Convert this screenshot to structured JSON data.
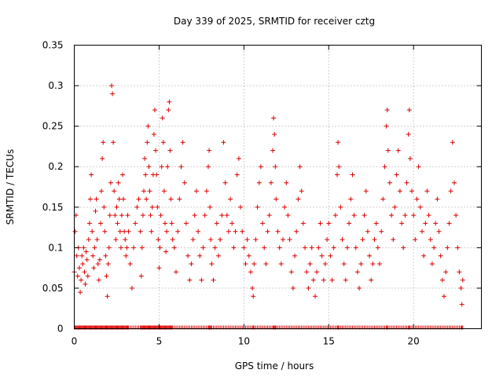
{
  "chart_data": {
    "type": "scatter",
    "title": "Day 339 of 2025, SRMTID for receiver cztg",
    "xlabel": "GPS time / hours",
    "ylabel": "SRMTID / TECUs",
    "xlim": [
      0,
      24
    ],
    "ylim": [
      0,
      0.35
    ],
    "x_ticks": [
      0,
      5,
      10,
      15,
      20
    ],
    "x_tick_labels": [
      "0",
      "5",
      "10",
      "15",
      "20"
    ],
    "y_ticks": [
      0,
      0.05,
      0.1,
      0.15,
      0.2,
      0.25,
      0.3,
      0.35
    ],
    "y_tick_labels": [
      "0",
      "0.05",
      "0.1",
      "0.15",
      "0.2",
      "0.25",
      "0.3",
      "0.35"
    ],
    "grid": true,
    "marker": "+",
    "color": "#dd0000",
    "series": [
      {
        "name": "SRMTID",
        "points": [
          [
            0.0,
            0.07
          ],
          [
            0.05,
            0.12
          ],
          [
            0.1,
            0.14
          ],
          [
            0.15,
            0.09
          ],
          [
            0.2,
            0.065
          ],
          [
            0.25,
            0.1
          ],
          [
            0.3,
            0.075
          ],
          [
            0.35,
            0.045
          ],
          [
            0.4,
            0.06
          ],
          [
            0.45,
            0.09
          ],
          [
            0.5,
            0.08
          ],
          [
            0.55,
            0.1
          ],
          [
            0.6,
            0.07
          ],
          [
            0.65,
            0.055
          ],
          [
            0.7,
            0.095
          ],
          [
            0.75,
            0.085
          ],
          [
            0.8,
            0.065
          ],
          [
            0.85,
            0.11
          ],
          [
            0.9,
            0.13
          ],
          [
            0.95,
            0.16
          ],
          [
            1.0,
            0.19
          ],
          [
            1.05,
            0.12
          ],
          [
            1.1,
            0.09
          ],
          [
            1.15,
            0.075
          ],
          [
            1.2,
            0.1
          ],
          [
            1.25,
            0.145
          ],
          [
            1.3,
            0.16
          ],
          [
            1.35,
            0.11
          ],
          [
            1.4,
            0.08
          ],
          [
            1.45,
            0.06
          ],
          [
            1.5,
            0.085
          ],
          [
            1.55,
            0.13
          ],
          [
            1.6,
            0.17
          ],
          [
            1.65,
            0.21
          ],
          [
            1.7,
            0.23
          ],
          [
            1.75,
            0.15
          ],
          [
            1.8,
            0.12
          ],
          [
            1.85,
            0.09
          ],
          [
            1.9,
            0.065
          ],
          [
            1.95,
            0.04
          ],
          [
            2.0,
            0.08
          ],
          [
            2.05,
            0.1
          ],
          [
            2.1,
            0.14
          ],
          [
            2.15,
            0.18
          ],
          [
            2.2,
            0.3
          ],
          [
            2.25,
            0.29
          ],
          [
            2.3,
            0.23
          ],
          [
            2.35,
            0.17
          ],
          [
            2.4,
            0.14
          ],
          [
            2.45,
            0.11
          ],
          [
            2.5,
            0.15
          ],
          [
            2.55,
            0.13
          ],
          [
            2.6,
            0.18
          ],
          [
            2.65,
            0.16
          ],
          [
            2.7,
            0.12
          ],
          [
            2.75,
            0.1
          ],
          [
            2.8,
            0.14
          ],
          [
            2.85,
            0.19
          ],
          [
            2.9,
            0.16
          ],
          [
            2.95,
            0.12
          ],
          [
            3.0,
            0.11
          ],
          [
            3.05,
            0.09
          ],
          [
            3.1,
            0.1
          ],
          [
            3.15,
            0.14
          ],
          [
            3.2,
            0.12
          ],
          [
            3.3,
            0.08
          ],
          [
            3.4,
            0.05
          ],
          [
            3.5,
            0.1
          ],
          [
            3.6,
            0.13
          ],
          [
            3.7,
            0.15
          ],
          [
            3.8,
            0.16
          ],
          [
            3.9,
            0.12
          ],
          [
            3.95,
            0.065
          ],
          [
            4.0,
            0.1
          ],
          [
            4.05,
            0.14
          ],
          [
            4.1,
            0.17
          ],
          [
            4.15,
            0.21
          ],
          [
            4.2,
            0.19
          ],
          [
            4.25,
            0.16
          ],
          [
            4.3,
            0.23
          ],
          [
            4.35,
            0.25
          ],
          [
            4.4,
            0.2
          ],
          [
            4.45,
            0.17
          ],
          [
            4.5,
            0.14
          ],
          [
            4.55,
            0.12
          ],
          [
            4.6,
            0.15
          ],
          [
            4.65,
            0.19
          ],
          [
            4.7,
            0.24
          ],
          [
            4.75,
            0.27
          ],
          [
            4.8,
            0.22
          ],
          [
            4.85,
            0.19
          ],
          [
            4.9,
            0.15
          ],
          [
            4.95,
            0.11
          ],
          [
            5.0,
            0.075
          ],
          [
            5.05,
            0.1
          ],
          [
            5.1,
            0.14
          ],
          [
            5.15,
            0.2
          ],
          [
            5.2,
            0.26
          ],
          [
            5.25,
            0.23
          ],
          [
            5.3,
            0.17
          ],
          [
            5.35,
            0.13
          ],
          [
            5.4,
            0.095
          ],
          [
            5.45,
            0.12
          ],
          [
            5.5,
            0.2
          ],
          [
            5.55,
            0.27
          ],
          [
            5.6,
            0.28
          ],
          [
            5.65,
            0.22
          ],
          [
            5.7,
            0.16
          ],
          [
            5.75,
            0.13
          ],
          [
            5.8,
            0.11
          ],
          [
            5.9,
            0.1
          ],
          [
            6.0,
            0.07
          ],
          [
            6.1,
            0.12
          ],
          [
            6.2,
            0.16
          ],
          [
            6.3,
            0.2
          ],
          [
            6.4,
            0.23
          ],
          [
            6.5,
            0.18
          ],
          [
            6.6,
            0.13
          ],
          [
            6.7,
            0.09
          ],
          [
            6.8,
            0.06
          ],
          [
            6.9,
            0.08
          ],
          [
            7.0,
            0.11
          ],
          [
            7.1,
            0.14
          ],
          [
            7.2,
            0.17
          ],
          [
            7.3,
            0.12
          ],
          [
            7.4,
            0.09
          ],
          [
            7.5,
            0.06
          ],
          [
            7.6,
            0.1
          ],
          [
            7.7,
            0.14
          ],
          [
            7.8,
            0.17
          ],
          [
            7.9,
            0.2
          ],
          [
            7.95,
            0.22
          ],
          [
            8.0,
            0.15
          ],
          [
            8.05,
            0.11
          ],
          [
            8.1,
            0.08
          ],
          [
            8.2,
            0.06
          ],
          [
            8.3,
            0.1
          ],
          [
            8.4,
            0.13
          ],
          [
            8.5,
            0.09
          ],
          [
            8.6,
            0.11
          ],
          [
            8.7,
            0.14
          ],
          [
            8.8,
            0.23
          ],
          [
            8.9,
            0.18
          ],
          [
            9.0,
            0.14
          ],
          [
            9.1,
            0.12
          ],
          [
            9.2,
            0.16
          ],
          [
            9.3,
            0.13
          ],
          [
            9.4,
            0.1
          ],
          [
            9.5,
            0.12
          ],
          [
            9.6,
            0.19
          ],
          [
            9.7,
            0.21
          ],
          [
            9.8,
            0.15
          ],
          [
            9.9,
            0.12
          ],
          [
            10.0,
            0.1
          ],
          [
            10.1,
            0.08
          ],
          [
            10.2,
            0.11
          ],
          [
            10.3,
            0.09
          ],
          [
            10.4,
            0.07
          ],
          [
            10.5,
            0.05
          ],
          [
            10.55,
            0.04
          ],
          [
            10.6,
            0.08
          ],
          [
            10.7,
            0.11
          ],
          [
            10.8,
            0.15
          ],
          [
            10.9,
            0.18
          ],
          [
            11.0,
            0.2
          ],
          [
            11.1,
            0.13
          ],
          [
            11.2,
            0.1
          ],
          [
            11.3,
            0.08
          ],
          [
            11.4,
            0.12
          ],
          [
            11.5,
            0.14
          ],
          [
            11.6,
            0.18
          ],
          [
            11.7,
            0.22
          ],
          [
            11.75,
            0.26
          ],
          [
            11.8,
            0.24
          ],
          [
            11.85,
            0.2
          ],
          [
            11.9,
            0.16
          ],
          [
            12.0,
            0.12
          ],
          [
            12.1,
            0.1
          ],
          [
            12.2,
            0.08
          ],
          [
            12.3,
            0.11
          ],
          [
            12.4,
            0.15
          ],
          [
            12.5,
            0.18
          ],
          [
            12.6,
            0.14
          ],
          [
            12.7,
            0.11
          ],
          [
            12.8,
            0.07
          ],
          [
            12.9,
            0.05
          ],
          [
            13.0,
            0.09
          ],
          [
            13.1,
            0.12
          ],
          [
            13.2,
            0.16
          ],
          [
            13.3,
            0.2
          ],
          [
            13.4,
            0.17
          ],
          [
            13.5,
            0.13
          ],
          [
            13.6,
            0.1
          ],
          [
            13.7,
            0.07
          ],
          [
            13.8,
            0.05
          ],
          [
            13.9,
            0.08
          ],
          [
            14.0,
            0.1
          ],
          [
            14.1,
            0.06
          ],
          [
            14.2,
            0.04
          ],
          [
            14.3,
            0.07
          ],
          [
            14.4,
            0.1
          ],
          [
            14.5,
            0.13
          ],
          [
            14.6,
            0.09
          ],
          [
            14.7,
            0.06
          ],
          [
            14.8,
            0.08
          ],
          [
            14.9,
            0.11
          ],
          [
            15.0,
            0.13
          ],
          [
            15.1,
            0.09
          ],
          [
            15.2,
            0.06
          ],
          [
            15.3,
            0.1
          ],
          [
            15.4,
            0.14
          ],
          [
            15.5,
            0.19
          ],
          [
            15.55,
            0.23
          ],
          [
            15.6,
            0.2
          ],
          [
            15.7,
            0.15
          ],
          [
            15.8,
            0.11
          ],
          [
            15.9,
            0.08
          ],
          [
            16.0,
            0.06
          ],
          [
            16.1,
            0.1
          ],
          [
            16.2,
            0.13
          ],
          [
            16.3,
            0.16
          ],
          [
            16.4,
            0.19
          ],
          [
            16.5,
            0.14
          ],
          [
            16.6,
            0.1
          ],
          [
            16.7,
            0.07
          ],
          [
            16.8,
            0.05
          ],
          [
            16.9,
            0.08
          ],
          [
            17.0,
            0.11
          ],
          [
            17.1,
            0.14
          ],
          [
            17.2,
            0.17
          ],
          [
            17.3,
            0.12
          ],
          [
            17.4,
            0.09
          ],
          [
            17.5,
            0.06
          ],
          [
            17.6,
            0.08
          ],
          [
            17.7,
            0.11
          ],
          [
            17.8,
            0.13
          ],
          [
            17.9,
            0.1
          ],
          [
            18.0,
            0.08
          ],
          [
            18.1,
            0.12
          ],
          [
            18.2,
            0.16
          ],
          [
            18.3,
            0.2
          ],
          [
            18.4,
            0.25
          ],
          [
            18.45,
            0.27
          ],
          [
            18.5,
            0.22
          ],
          [
            18.6,
            0.18
          ],
          [
            18.7,
            0.14
          ],
          [
            18.8,
            0.11
          ],
          [
            18.9,
            0.15
          ],
          [
            19.0,
            0.19
          ],
          [
            19.1,
            0.22
          ],
          [
            19.2,
            0.17
          ],
          [
            19.3,
            0.13
          ],
          [
            19.4,
            0.1
          ],
          [
            19.5,
            0.14
          ],
          [
            19.6,
            0.18
          ],
          [
            19.7,
            0.24
          ],
          [
            19.75,
            0.27
          ],
          [
            19.8,
            0.21
          ],
          [
            19.9,
            0.17
          ],
          [
            20.0,
            0.14
          ],
          [
            20.1,
            0.11
          ],
          [
            20.2,
            0.16
          ],
          [
            20.3,
            0.2
          ],
          [
            20.4,
            0.15
          ],
          [
            20.5,
            0.12
          ],
          [
            20.6,
            0.09
          ],
          [
            20.7,
            0.13
          ],
          [
            20.8,
            0.17
          ],
          [
            20.9,
            0.14
          ],
          [
            21.0,
            0.11
          ],
          [
            21.1,
            0.08
          ],
          [
            21.2,
            0.1
          ],
          [
            21.3,
            0.13
          ],
          [
            21.4,
            0.16
          ],
          [
            21.5,
            0.12
          ],
          [
            21.6,
            0.09
          ],
          [
            21.7,
            0.06
          ],
          [
            21.8,
            0.04
          ],
          [
            21.9,
            0.07
          ],
          [
            22.0,
            0.1
          ],
          [
            22.1,
            0.13
          ],
          [
            22.2,
            0.17
          ],
          [
            22.3,
            0.23
          ],
          [
            22.4,
            0.18
          ],
          [
            22.5,
            0.14
          ],
          [
            22.6,
            0.1
          ],
          [
            22.7,
            0.07
          ],
          [
            22.8,
            0.05
          ],
          [
            22.85,
            0.03
          ],
          [
            22.9,
            0.06
          ]
        ]
      }
    ]
  }
}
